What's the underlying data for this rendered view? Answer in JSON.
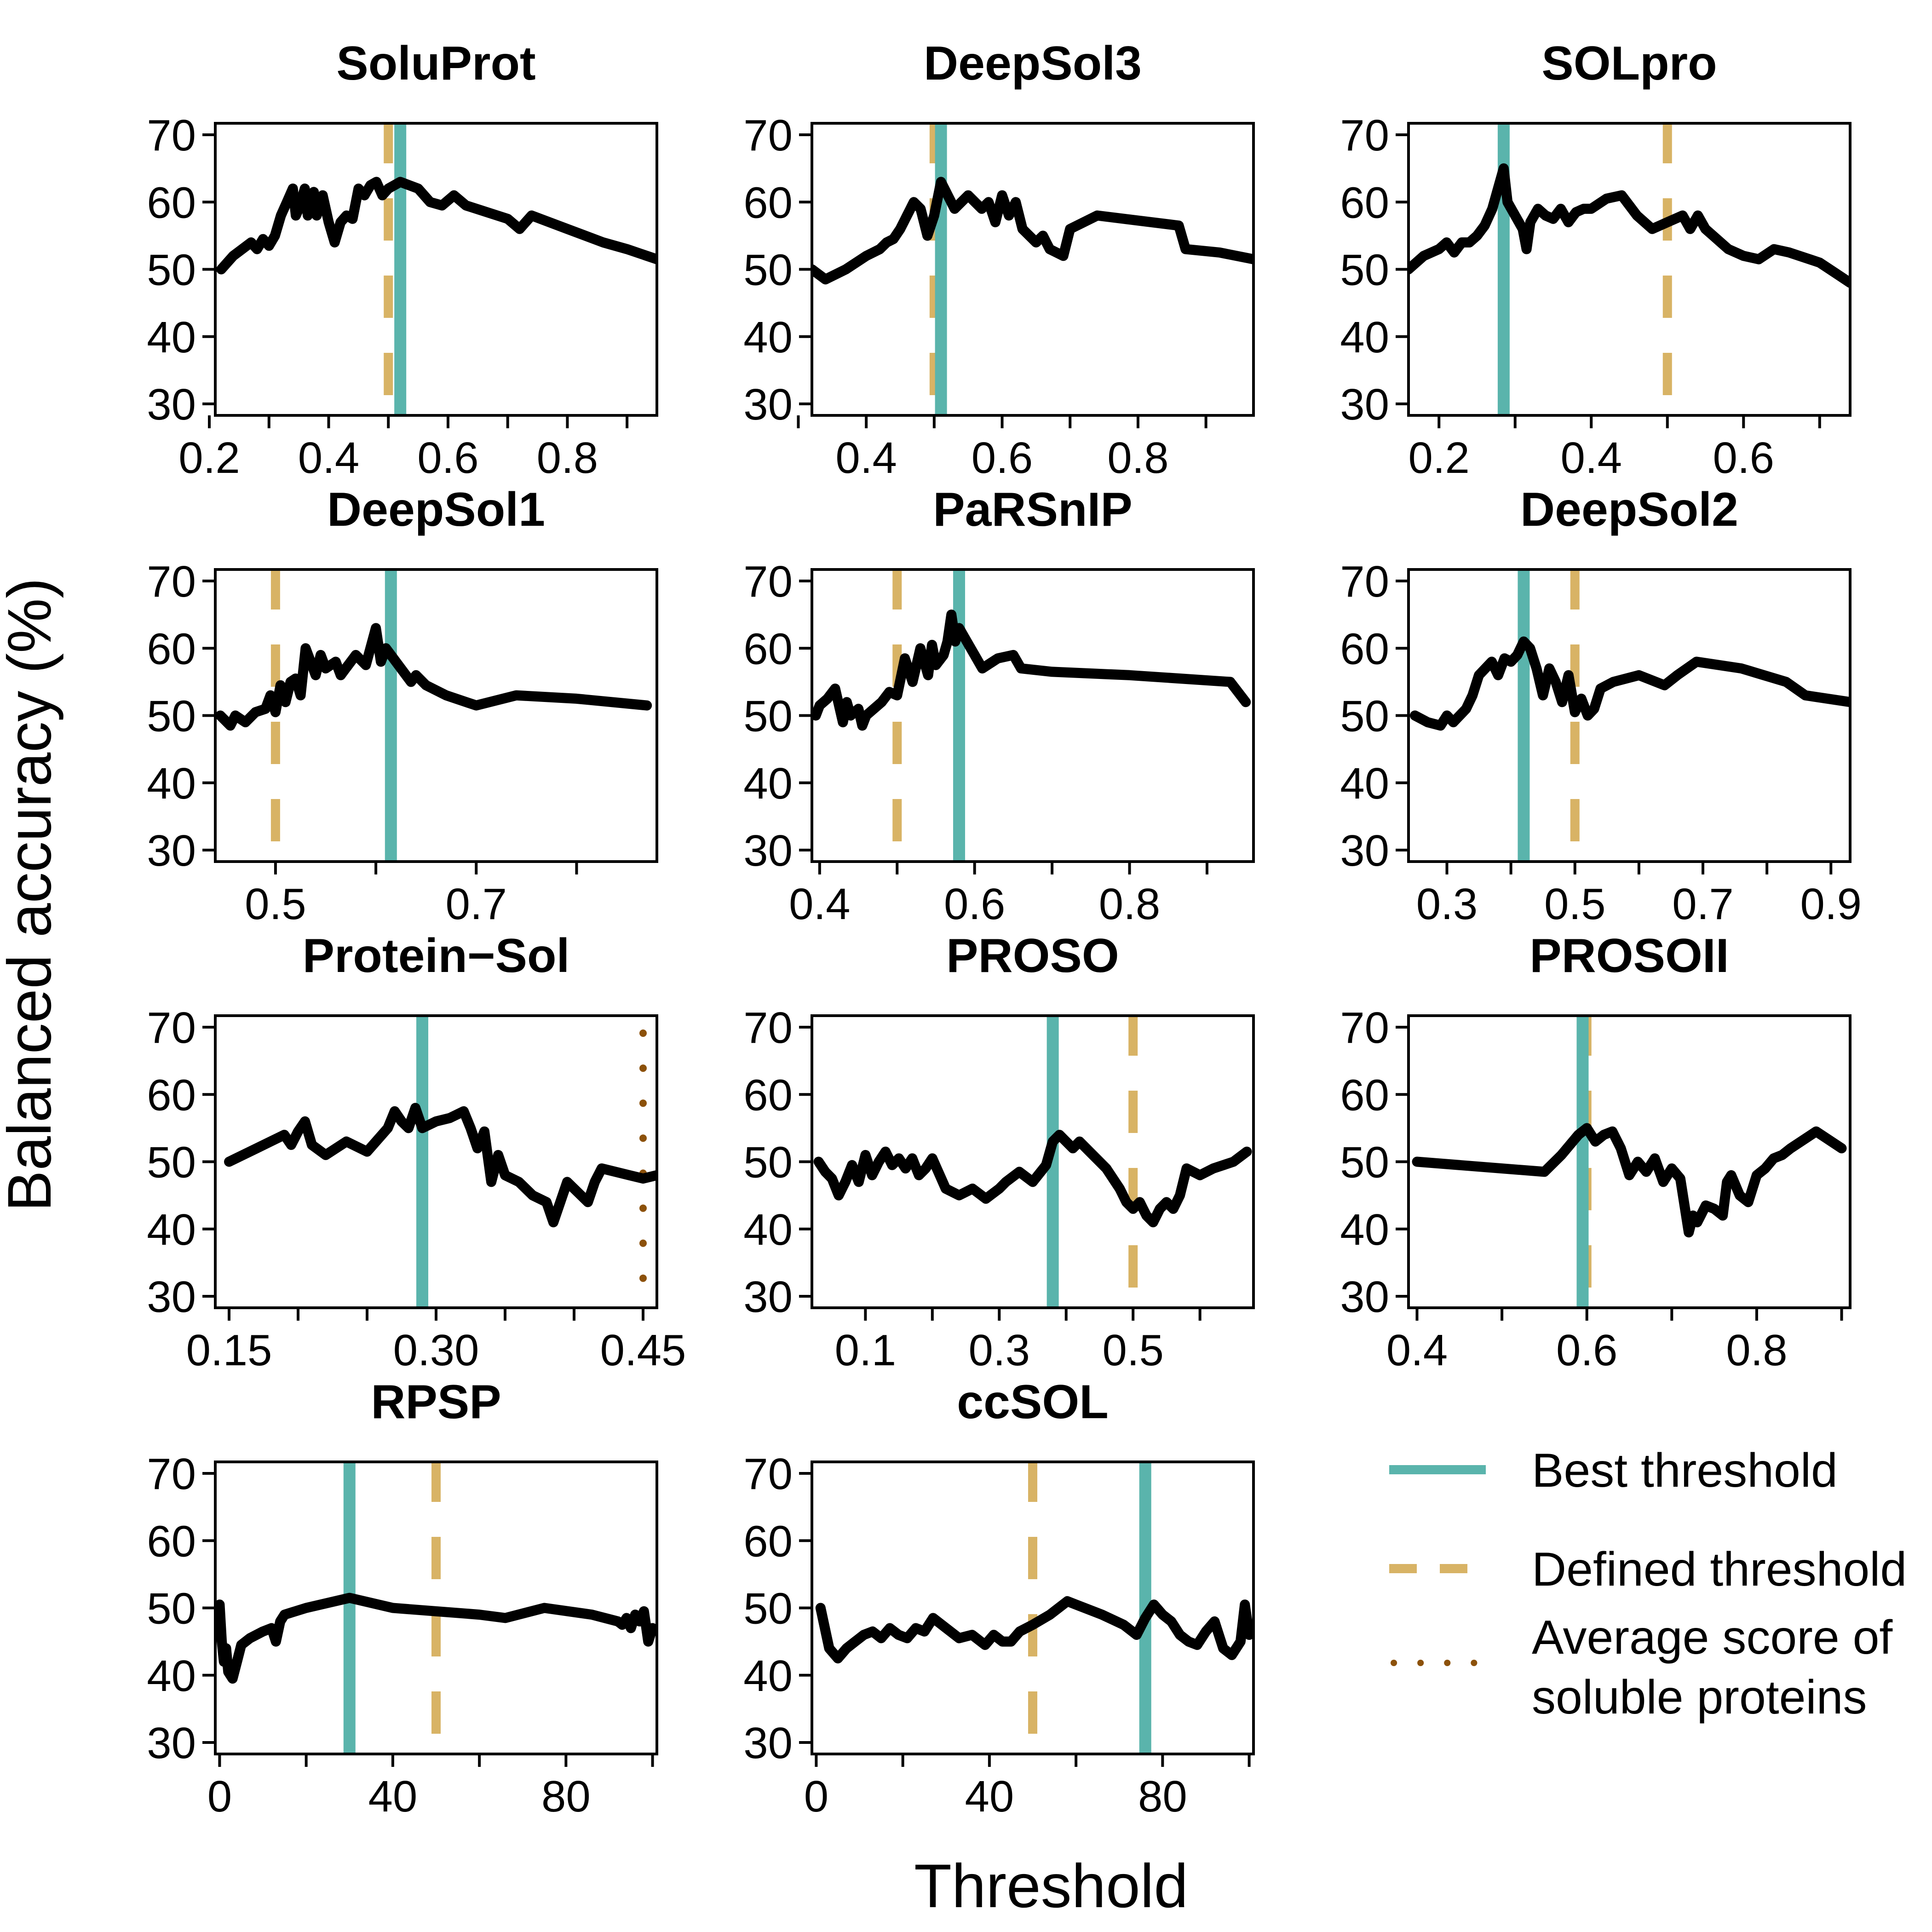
{
  "figure": {
    "ylabel": "Balanced accuracy (%)",
    "xlabel": "Threshold"
  },
  "colors": {
    "best": "#5ab4ac",
    "defined": "#d8b365",
    "average": "#8c510a",
    "curve": "#000000"
  },
  "legend": {
    "best_label": "Best threshold",
    "defined_label": "Defined threshold",
    "average_line1": "Average score of",
    "average_line2": "soluble proteins"
  },
  "chart_data": [
    {
      "type": "line",
      "title": "SoluProt",
      "xlim": [
        0.21,
        0.95
      ],
      "ylim": [
        30,
        70
      ],
      "xticks": [
        0.2,
        0.3,
        0.4,
        0.5,
        0.6,
        0.7,
        0.8,
        0.9
      ],
      "xtick_labels": [
        "0.2",
        "",
        "0.4",
        "",
        "0.6",
        "",
        "0.8",
        ""
      ],
      "yticks": [
        30,
        40,
        50,
        60,
        70
      ],
      "ytick_labels": [
        "30",
        "40",
        "50",
        "60",
        "70"
      ],
      "best_threshold": 0.52,
      "defined_threshold": 0.5,
      "x": [
        0.22,
        0.24,
        0.27,
        0.28,
        0.29,
        0.3,
        0.31,
        0.32,
        0.33,
        0.34,
        0.345,
        0.35,
        0.36,
        0.365,
        0.37,
        0.375,
        0.38,
        0.39,
        0.4,
        0.41,
        0.42,
        0.43,
        0.44,
        0.45,
        0.46,
        0.47,
        0.48,
        0.49,
        0.5,
        0.52,
        0.55,
        0.57,
        0.59,
        0.61,
        0.63,
        0.7,
        0.72,
        0.74,
        0.8,
        0.86,
        0.9,
        0.95
      ],
      "y": [
        50,
        52,
        54,
        53,
        54.5,
        53.5,
        55,
        58,
        60,
        62,
        58,
        59,
        62,
        58,
        60,
        61.5,
        58,
        61,
        57,
        54,
        57,
        58,
        57.5,
        62,
        61,
        62.5,
        63,
        61,
        62,
        63,
        62,
        60,
        59.5,
        61,
        59.5,
        57.5,
        56,
        58,
        56,
        54,
        53,
        51.5
      ]
    },
    {
      "type": "line",
      "title": "DeepSol3",
      "xlim": [
        0.32,
        0.97
      ],
      "ylim": [
        30,
        70
      ],
      "xticks": [
        0.3,
        0.4,
        0.5,
        0.6,
        0.7,
        0.8,
        0.9
      ],
      "xtick_labels": [
        "",
        "0.4",
        "",
        "0.6",
        "",
        "0.8",
        ""
      ],
      "yticks": [
        30,
        40,
        50,
        60,
        70
      ],
      "ytick_labels": [
        "30",
        "40",
        "50",
        "60",
        "70"
      ],
      "best_threshold": 0.51,
      "defined_threshold": 0.5,
      "x": [
        0.32,
        0.34,
        0.37,
        0.4,
        0.42,
        0.43,
        0.44,
        0.45,
        0.46,
        0.47,
        0.48,
        0.49,
        0.5,
        0.51,
        0.52,
        0.53,
        0.55,
        0.57,
        0.58,
        0.59,
        0.6,
        0.61,
        0.62,
        0.63,
        0.65,
        0.66,
        0.67,
        0.69,
        0.7,
        0.74,
        0.86,
        0.87,
        0.92,
        0.97
      ],
      "y": [
        50,
        48.5,
        50,
        52,
        53,
        54,
        54.5,
        56,
        58,
        60,
        59,
        55,
        58,
        63,
        61,
        59,
        61,
        59,
        60,
        57,
        61,
        58,
        60,
        56,
        54,
        55,
        53,
        52,
        56,
        58,
        56.5,
        53,
        52.5,
        51.5
      ]
    },
    {
      "type": "line",
      "title": "SOLpro",
      "xlim": [
        0.16,
        0.74
      ],
      "ylim": [
        30,
        70
      ],
      "xticks": [
        0.2,
        0.3,
        0.4,
        0.5,
        0.6,
        0.7
      ],
      "xtick_labels": [
        "0.2",
        "",
        "0.4",
        "",
        "0.6",
        ""
      ],
      "yticks": [
        30,
        40,
        50,
        60,
        70
      ],
      "ytick_labels": [
        "30",
        "40",
        "50",
        "60",
        "70"
      ],
      "best_threshold": 0.285,
      "defined_threshold": 0.5,
      "x": [
        0.16,
        0.18,
        0.2,
        0.21,
        0.22,
        0.23,
        0.24,
        0.25,
        0.26,
        0.27,
        0.28,
        0.285,
        0.29,
        0.3,
        0.31,
        0.315,
        0.32,
        0.33,
        0.34,
        0.35,
        0.36,
        0.37,
        0.38,
        0.39,
        0.4,
        0.42,
        0.44,
        0.46,
        0.48,
        0.5,
        0.52,
        0.53,
        0.54,
        0.55,
        0.56,
        0.57,
        0.58,
        0.6,
        0.62,
        0.64,
        0.66,
        0.7,
        0.72,
        0.74
      ],
      "y": [
        50,
        52,
        53,
        54,
        52.5,
        54,
        54,
        55,
        56.5,
        59,
        63,
        65,
        60,
        58,
        56,
        53,
        57,
        59,
        58,
        57.5,
        59,
        57,
        58.5,
        59,
        59,
        60.5,
        61,
        58,
        56,
        57,
        58,
        56,
        58,
        56,
        55,
        54,
        53,
        52,
        51.5,
        53,
        52.5,
        51,
        49.5,
        48
      ]
    },
    {
      "type": "line",
      "title": "DeepSol1",
      "xlim": [
        0.44,
        0.88
      ],
      "ylim": [
        30,
        70
      ],
      "xticks": [
        0.5,
        0.6,
        0.7,
        0.8
      ],
      "xtick_labels": [
        "0.5",
        "",
        "0.7",
        ""
      ],
      "yticks": [
        30,
        40,
        50,
        60,
        70
      ],
      "ytick_labels": [
        "30",
        "40",
        "50",
        "60",
        "70"
      ],
      "best_threshold": 0.615,
      "defined_threshold": 0.5,
      "x": [
        0.445,
        0.455,
        0.46,
        0.47,
        0.48,
        0.49,
        0.495,
        0.5,
        0.505,
        0.51,
        0.515,
        0.52,
        0.525,
        0.53,
        0.54,
        0.545,
        0.55,
        0.56,
        0.565,
        0.57,
        0.58,
        0.59,
        0.6,
        0.605,
        0.61,
        0.62,
        0.635,
        0.64,
        0.65,
        0.67,
        0.69,
        0.7,
        0.74,
        0.8,
        0.87
      ],
      "y": [
        50,
        48.5,
        50,
        49,
        50.5,
        51,
        53,
        50.5,
        54.5,
        52,
        55,
        55.5,
        53,
        60,
        56,
        59,
        57,
        58,
        56,
        57,
        59,
        57.5,
        63,
        58,
        60,
        58,
        55,
        56,
        54.5,
        53,
        52,
        51.5,
        53,
        52.5,
        51.5
      ]
    },
    {
      "type": "line",
      "title": "PaRSnIP",
      "xlim": [
        0.39,
        0.96
      ],
      "ylim": [
        30,
        70
      ],
      "xticks": [
        0.4,
        0.5,
        0.6,
        0.7,
        0.8,
        0.9
      ],
      "xtick_labels": [
        "0.4",
        "",
        "0.6",
        "",
        "0.8",
        ""
      ],
      "yticks": [
        30,
        40,
        50,
        60,
        70
      ],
      "ytick_labels": [
        "30",
        "40",
        "50",
        "60",
        "70"
      ],
      "best_threshold": 0.58,
      "defined_threshold": 0.5,
      "x": [
        0.395,
        0.4,
        0.41,
        0.42,
        0.43,
        0.435,
        0.44,
        0.45,
        0.455,
        0.46,
        0.47,
        0.48,
        0.49,
        0.5,
        0.51,
        0.52,
        0.53,
        0.54,
        0.545,
        0.55,
        0.56,
        0.565,
        0.57,
        0.575,
        0.58,
        0.6,
        0.61,
        0.63,
        0.65,
        0.66,
        0.7,
        0.8,
        0.93,
        0.95
      ],
      "y": [
        50,
        51.5,
        52.5,
        54,
        49,
        52,
        50,
        51,
        48.5,
        50,
        51,
        52,
        53.5,
        53,
        58.5,
        55,
        60,
        56,
        60.5,
        57.5,
        59,
        61,
        65,
        61,
        63,
        59,
        57,
        58.5,
        59,
        57,
        56.5,
        56,
        55,
        52
      ]
    },
    {
      "type": "line",
      "title": "DeepSol2",
      "xlim": [
        0.24,
        0.93
      ],
      "ylim": [
        30,
        70
      ],
      "xticks": [
        0.3,
        0.4,
        0.5,
        0.6,
        0.7,
        0.8,
        0.9
      ],
      "xtick_labels": [
        "0.3",
        "",
        "0.5",
        "",
        "0.7",
        "",
        "0.9"
      ],
      "yticks": [
        30,
        40,
        50,
        60,
        70
      ],
      "ytick_labels": [
        "30",
        "40",
        "50",
        "60",
        "70"
      ],
      "best_threshold": 0.42,
      "defined_threshold": 0.5,
      "x": [
        0.25,
        0.27,
        0.29,
        0.3,
        0.31,
        0.32,
        0.33,
        0.34,
        0.35,
        0.36,
        0.37,
        0.38,
        0.39,
        0.4,
        0.41,
        0.42,
        0.43,
        0.44,
        0.45,
        0.46,
        0.47,
        0.48,
        0.49,
        0.5,
        0.51,
        0.52,
        0.53,
        0.54,
        0.56,
        0.6,
        0.64,
        0.66,
        0.69,
        0.76,
        0.83,
        0.86,
        0.93
      ],
      "y": [
        50,
        49,
        48.5,
        50,
        49,
        50,
        51,
        53,
        56,
        57,
        58,
        56,
        58.5,
        58,
        59,
        61,
        60,
        57,
        53,
        57,
        55,
        52,
        56,
        50.5,
        52.5,
        50,
        51,
        54,
        55,
        56,
        54.5,
        56,
        58,
        57,
        55,
        53,
        52
      ]
    },
    {
      "type": "line",
      "title": "Protein−Sol",
      "xlim": [
        0.14,
        0.46
      ],
      "ylim": [
        30,
        70
      ],
      "xticks": [
        0.15,
        0.2,
        0.25,
        0.3,
        0.35,
        0.4,
        0.45
      ],
      "xtick_labels": [
        "0.15",
        "",
        "",
        "0.30",
        "",
        "",
        "0.45"
      ],
      "yticks": [
        30,
        40,
        50,
        60,
        70
      ],
      "ytick_labels": [
        "30",
        "40",
        "50",
        "60",
        "70"
      ],
      "best_threshold": 0.29,
      "defined_threshold": null,
      "average_score": 0.45,
      "x": [
        0.15,
        0.17,
        0.18,
        0.19,
        0.195,
        0.2,
        0.205,
        0.21,
        0.22,
        0.235,
        0.25,
        0.265,
        0.27,
        0.275,
        0.28,
        0.285,
        0.29,
        0.3,
        0.31,
        0.32,
        0.325,
        0.33,
        0.335,
        0.34,
        0.345,
        0.35,
        0.36,
        0.37,
        0.38,
        0.385,
        0.39,
        0.395,
        0.4,
        0.41,
        0.415,
        0.42,
        0.43,
        0.44,
        0.45,
        0.46
      ],
      "y": [
        50,
        52,
        53,
        54,
        52.5,
        54.5,
        56,
        52.5,
        51,
        53,
        51.5,
        55,
        57.5,
        56,
        55,
        58,
        55,
        56,
        56.5,
        57.5,
        55,
        52,
        54.5,
        47,
        51,
        48,
        47,
        45,
        44,
        41,
        44,
        47,
        46,
        44,
        47,
        49,
        48.5,
        48,
        47.5,
        48
      ]
    },
    {
      "type": "line",
      "title": "PROSO",
      "xlim": [
        0.02,
        0.68
      ],
      "ylim": [
        30,
        70
      ],
      "xticks": [
        0.1,
        0.2,
        0.3,
        0.4,
        0.5,
        0.6
      ],
      "xtick_labels": [
        "0.1",
        "",
        "0.3",
        "",
        "0.5",
        ""
      ],
      "yticks": [
        30,
        40,
        50,
        60,
        70
      ],
      "ytick_labels": [
        "30",
        "40",
        "50",
        "60",
        "70"
      ],
      "best_threshold": 0.38,
      "defined_threshold": 0.5,
      "x": [
        0.03,
        0.04,
        0.05,
        0.06,
        0.07,
        0.08,
        0.09,
        0.1,
        0.11,
        0.12,
        0.13,
        0.14,
        0.15,
        0.16,
        0.17,
        0.18,
        0.19,
        0.2,
        0.22,
        0.24,
        0.26,
        0.28,
        0.3,
        0.31,
        0.33,
        0.35,
        0.37,
        0.38,
        0.39,
        0.4,
        0.41,
        0.42,
        0.44,
        0.45,
        0.46,
        0.48,
        0.49,
        0.5,
        0.51,
        0.52,
        0.53,
        0.54,
        0.55,
        0.56,
        0.57,
        0.58,
        0.6,
        0.62,
        0.65,
        0.67
      ],
      "y": [
        50,
        48.5,
        47.5,
        45,
        47,
        49.5,
        47,
        51,
        48,
        50,
        51.5,
        49.5,
        50.5,
        49,
        50.5,
        48,
        49,
        50.5,
        46,
        45,
        46,
        44.5,
        46,
        47,
        48.5,
        47,
        49.5,
        53,
        54,
        53,
        52,
        53,
        51,
        50,
        49,
        46,
        44,
        43,
        44,
        42,
        41,
        43,
        44,
        43,
        45,
        49,
        48,
        49,
        50,
        51.5
      ]
    },
    {
      "type": "line",
      "title": "PROSOII",
      "xlim": [
        0.39,
        0.91
      ],
      "ylim": [
        30,
        70
      ],
      "xticks": [
        0.4,
        0.5,
        0.6,
        0.7,
        0.8,
        0.9
      ],
      "xtick_labels": [
        "0.4",
        "",
        "0.6",
        "",
        "0.8",
        ""
      ],
      "yticks": [
        30,
        40,
        50,
        60,
        70
      ],
      "ytick_labels": [
        "30",
        "40",
        "50",
        "60",
        "70"
      ],
      "best_threshold": 0.595,
      "defined_threshold": 0.6,
      "x": [
        0.4,
        0.55,
        0.57,
        0.59,
        0.6,
        0.61,
        0.62,
        0.63,
        0.64,
        0.65,
        0.66,
        0.67,
        0.68,
        0.69,
        0.7,
        0.71,
        0.72,
        0.725,
        0.73,
        0.74,
        0.75,
        0.76,
        0.765,
        0.77,
        0.78,
        0.79,
        0.8,
        0.81,
        0.82,
        0.83,
        0.84,
        0.87,
        0.9
      ],
      "y": [
        50,
        48.5,
        51,
        54,
        55,
        53,
        54,
        54.5,
        52,
        48,
        50,
        48.5,
        50.5,
        47,
        49,
        47.5,
        39.5,
        42,
        41,
        43.5,
        43,
        42,
        47,
        48,
        45,
        44,
        48,
        49,
        50.5,
        51,
        52,
        54.5,
        52
      ]
    },
    {
      "type": "line",
      "title": "RPSP",
      "xlim": [
        -1,
        101
      ],
      "ylim": [
        30,
        70
      ],
      "xticks": [
        0,
        20,
        40,
        60,
        80,
        100
      ],
      "xtick_labels": [
        "0",
        "",
        "40",
        "",
        "80",
        ""
      ],
      "yticks": [
        30,
        40,
        50,
        60,
        70
      ],
      "ytick_labels": [
        "30",
        "40",
        "50",
        "60",
        "70"
      ],
      "best_threshold": 30,
      "defined_threshold": 50,
      "x": [
        0,
        0.5,
        1,
        1.5,
        2,
        3,
        4,
        5,
        7,
        10,
        12,
        13,
        14,
        15,
        20,
        30,
        40,
        50,
        60,
        66,
        75,
        86,
        92,
        93,
        94,
        95,
        96,
        97,
        98,
        99,
        100
      ],
      "y": [
        50.5,
        45,
        42,
        44,
        40.5,
        39.5,
        42,
        44.5,
        45.5,
        46.5,
        47,
        45,
        48,
        49,
        50,
        51.5,
        50,
        49.5,
        49,
        48.5,
        50,
        49,
        48,
        47.5,
        48.5,
        47,
        49,
        48,
        49.5,
        45,
        47
      ]
    },
    {
      "type": "line",
      "title": "ccSOL",
      "xlim": [
        -1,
        101
      ],
      "ylim": [
        30,
        70
      ],
      "xticks": [
        0,
        20,
        40,
        60,
        80,
        100
      ],
      "xtick_labels": [
        "0",
        "",
        "40",
        "",
        "80",
        ""
      ],
      "yticks": [
        30,
        40,
        50,
        60,
        70
      ],
      "ytick_labels": [
        "30",
        "40",
        "50",
        "60",
        "70"
      ],
      "best_threshold": 76,
      "defined_threshold": 50,
      "x": [
        1,
        3,
        5,
        7,
        9,
        11,
        13,
        15,
        17,
        19,
        21,
        23,
        25,
        27,
        30,
        33,
        36,
        39,
        41,
        43,
        45,
        47,
        50,
        54,
        58,
        60,
        66,
        71,
        74,
        76,
        78,
        80,
        82,
        84,
        86,
        88,
        90,
        92,
        94,
        96,
        98,
        99,
        100
      ],
      "y": [
        50,
        44,
        42.5,
        44,
        45,
        46,
        46.5,
        45.5,
        47,
        46,
        45.5,
        47,
        46.5,
        48.5,
        47,
        45.5,
        46,
        44.5,
        46,
        45,
        45,
        46.5,
        47.5,
        49,
        51,
        50.5,
        49,
        47.5,
        46,
        48.5,
        50.5,
        49,
        48,
        46,
        45,
        44.5,
        46.5,
        48,
        44,
        43,
        45,
        50.5,
        46
      ]
    }
  ]
}
